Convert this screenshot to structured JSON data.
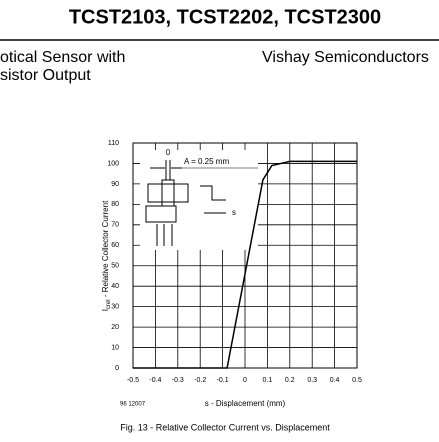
{
  "header": {
    "title": "TCST2103, TCST2202, TCST2300",
    "subtitle_line1": "otical Sensor with",
    "subtitle_line2": "sistor Output",
    "company": "Vishay Semiconductors"
  },
  "figure_code": "96 12007",
  "caption": "Fig. 13 - Relative Collector Current vs. Displacement",
  "chart_data": {
    "type": "line",
    "x_label": "s - Displacement (mm)",
    "y_label_symbol": "I",
    "y_label_subscript": "crel",
    "y_label": " - Relative Collector Current",
    "annotations": {
      "aperture": "A = 0.25 mm",
      "zero": "0",
      "displacement": "s"
    },
    "x": [
      -0.5,
      -0.08,
      0.08,
      0.12,
      0.2,
      0.5
    ],
    "series": [
      {
        "color": "#000000",
        "values": [
          0,
          0,
          92,
          99,
          101,
          101
        ]
      }
    ],
    "xlim": [
      -0.5,
      0.5
    ],
    "xticks": [
      -0.5,
      -0.4,
      -0.3,
      -0.2,
      -0.1,
      0,
      0.1,
      0.2,
      0.3,
      0.4,
      0.5
    ],
    "ylim": [
      0,
      110
    ],
    "yticks": [
      0,
      10,
      20,
      30,
      40,
      50,
      60,
      70,
      80,
      90,
      100,
      110
    ],
    "grid": true
  }
}
